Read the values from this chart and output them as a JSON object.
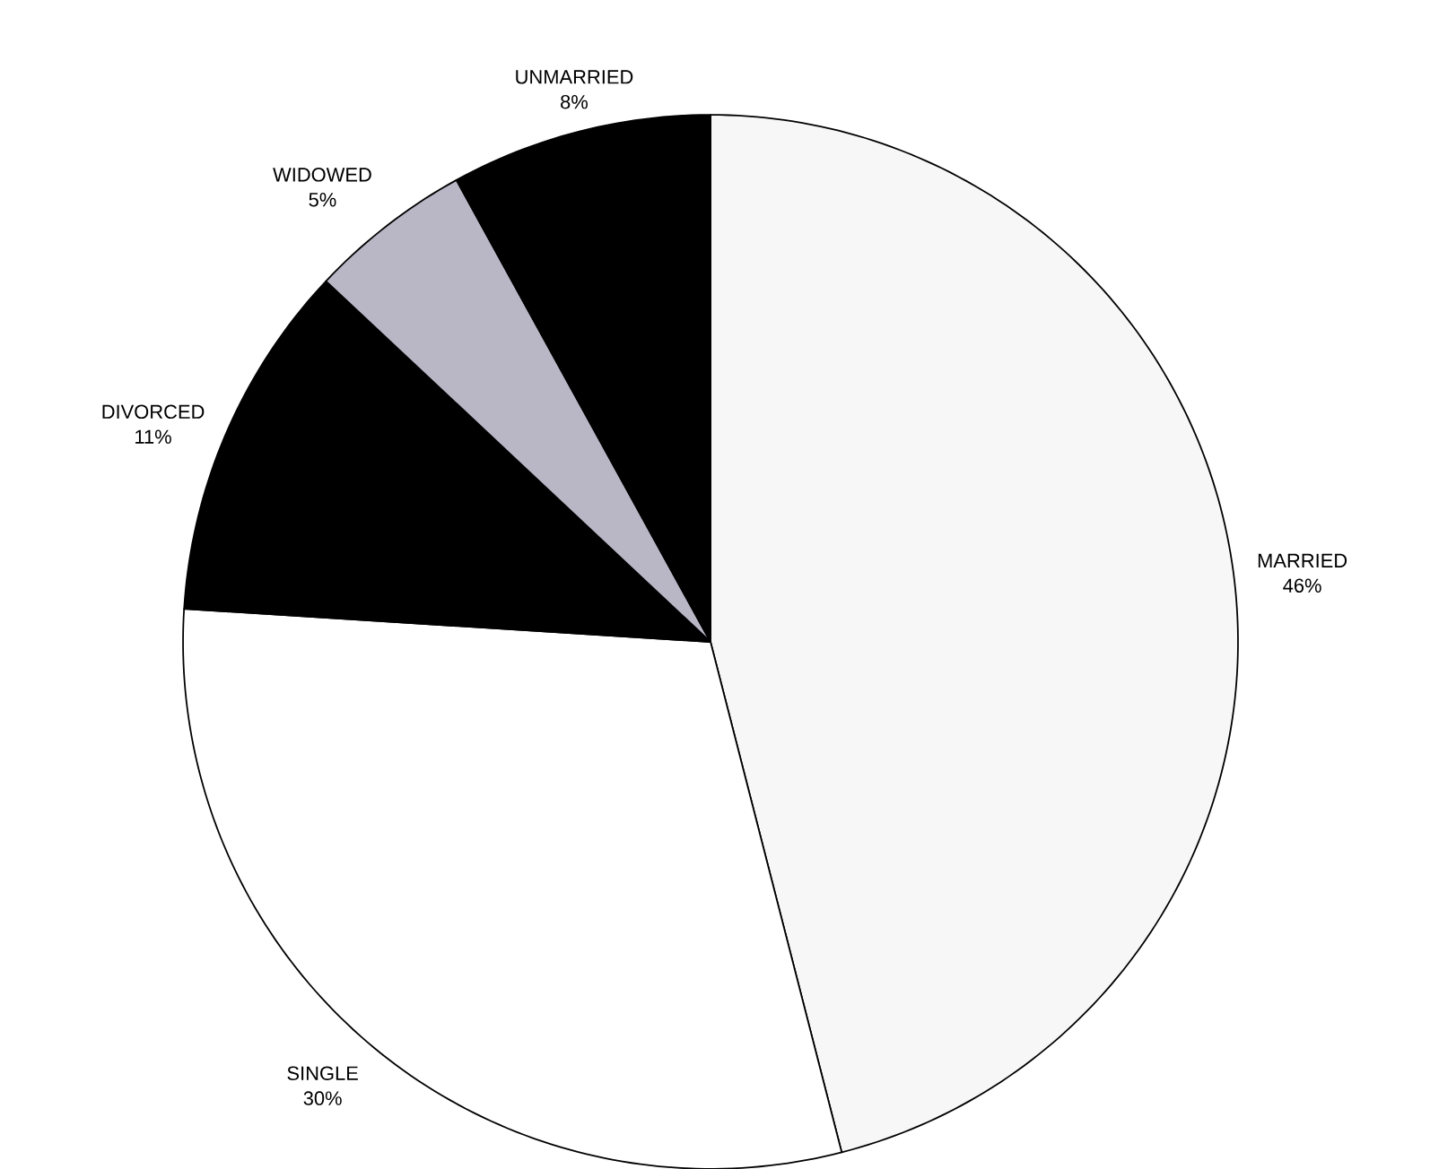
{
  "chart_data": {
    "type": "pie",
    "categories": [
      "MARRIED",
      "SINGLE",
      "DIVORCED",
      "WIDOWED",
      "UNMARRIED"
    ],
    "values": [
      46,
      30,
      11,
      5,
      8
    ],
    "value_labels": [
      "46%",
      "30%",
      "11%",
      "5%",
      "8%"
    ],
    "colors": [
      "#f7f7f7",
      "#ffffff",
      "#000000",
      "#b9b6c6",
      "#000000"
    ]
  }
}
